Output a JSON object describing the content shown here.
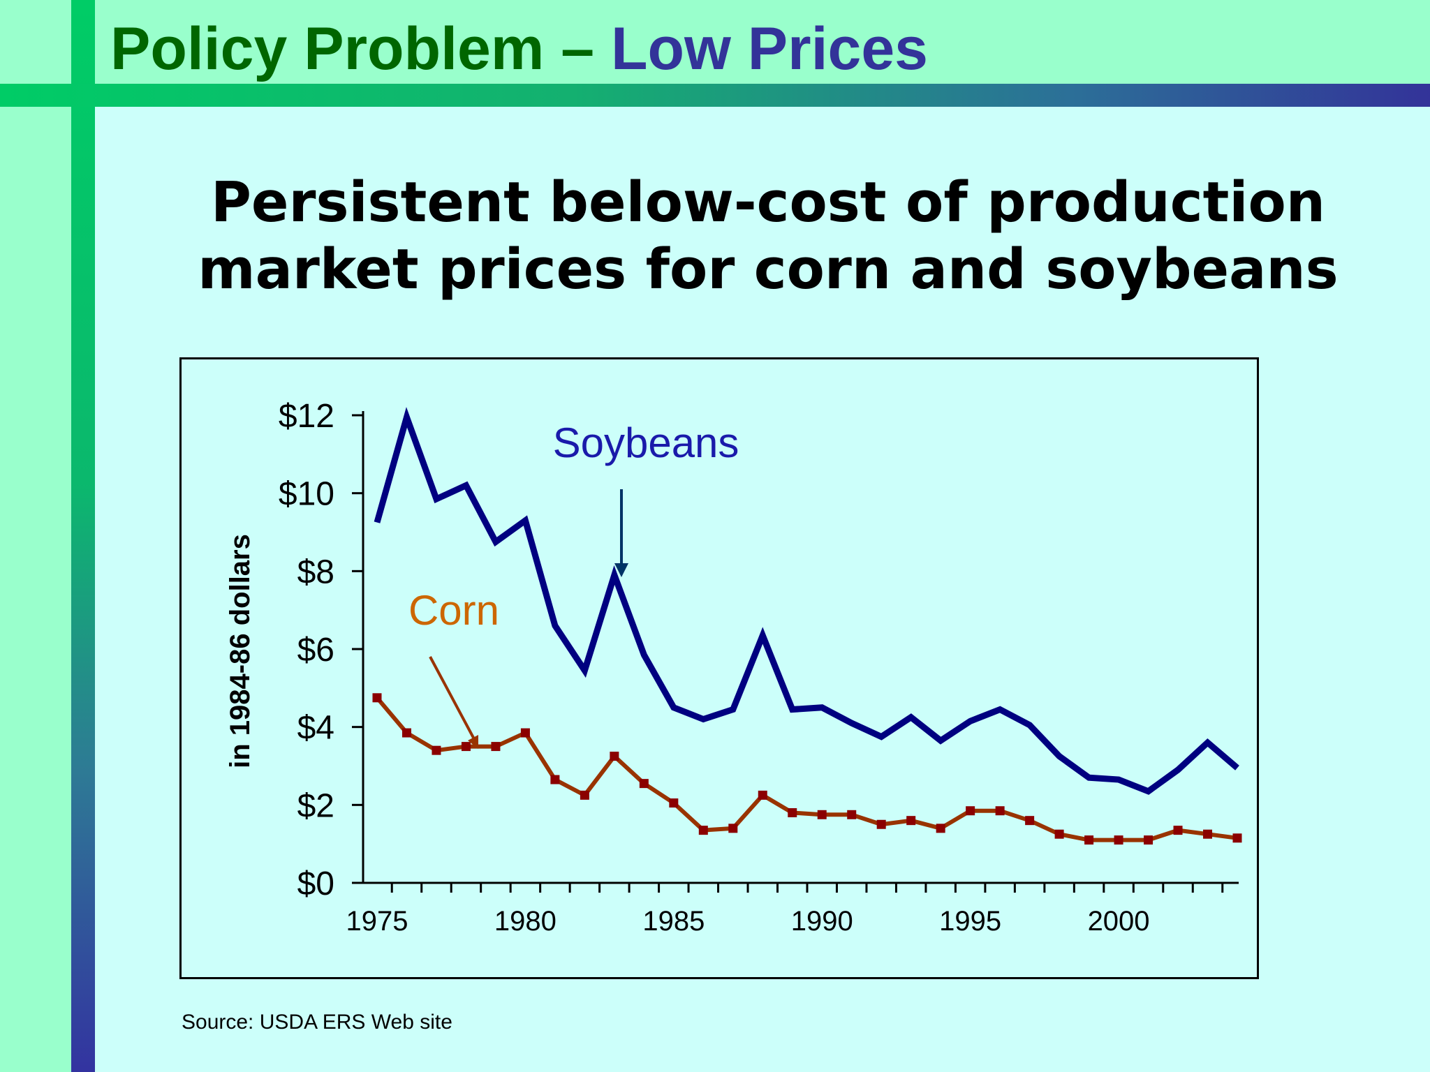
{
  "slide": {
    "title_part1": "Policy Problem – ",
    "title_part2": "Low Prices",
    "subtitle_line1": "Persistent below-cost of production",
    "subtitle_line2": "market prices for corn and soybeans",
    "source": "Source: USDA ERS Web site"
  },
  "colors": {
    "title_green": "#006600",
    "title_blue": "#333399",
    "soybeans": "#000080",
    "soybeans_label": "#1a1aaa",
    "corn": "#993300",
    "corn_marker": "#8b0000",
    "corn_label": "#cc6600",
    "soy_arrow": "#003366",
    "corn_arrow": "#993300"
  },
  "chart_data": {
    "type": "line",
    "ylabel": "in 1984-86 dollars",
    "ylim": [
      0,
      12
    ],
    "y_ticks": [
      0,
      2,
      4,
      6,
      8,
      10,
      12
    ],
    "y_tick_labels": [
      "$0",
      "$2",
      "$4",
      "$6",
      "$8",
      "$10",
      "$12"
    ],
    "xlim": [
      1975,
      2004
    ],
    "x_tick_labels": [
      "1975",
      "1980",
      "1985",
      "1990",
      "1995",
      "2000"
    ],
    "x_label_years": [
      1975,
      1980,
      1985,
      1990,
      1995,
      2000
    ],
    "grid": false,
    "x": [
      1975,
      1976,
      1977,
      1978,
      1979,
      1980,
      1981,
      1982,
      1983,
      1984,
      1985,
      1986,
      1987,
      1988,
      1989,
      1990,
      1991,
      1992,
      1993,
      1994,
      1995,
      1996,
      1997,
      1998,
      1999,
      2000,
      2001,
      2002,
      2003,
      2004
    ],
    "series": [
      {
        "name": "Soybeans",
        "values": [
          9.25,
          11.95,
          9.85,
          10.2,
          8.75,
          9.3,
          6.6,
          5.45,
          7.9,
          5.85,
          4.5,
          4.2,
          4.45,
          6.35,
          4.45,
          4.5,
          4.1,
          3.75,
          4.25,
          3.65,
          4.15,
          4.45,
          4.05,
          3.25,
          2.7,
          2.65,
          2.35,
          2.9,
          3.6,
          2.95
        ]
      },
      {
        "name": "Corn",
        "values": [
          4.75,
          3.85,
          3.4,
          3.5,
          3.5,
          3.85,
          2.65,
          2.25,
          3.25,
          2.55,
          2.05,
          1.35,
          1.4,
          2.25,
          1.8,
          1.75,
          1.75,
          1.5,
          1.6,
          1.4,
          1.85,
          1.85,
          1.6,
          1.25,
          1.1,
          1.1,
          1.1,
          1.35,
          1.25,
          1.15
        ]
      }
    ],
    "annotations": [
      {
        "text": "Soybeans",
        "points_to_year": 1983
      },
      {
        "text": "Corn",
        "points_to_year": 1978
      }
    ]
  }
}
